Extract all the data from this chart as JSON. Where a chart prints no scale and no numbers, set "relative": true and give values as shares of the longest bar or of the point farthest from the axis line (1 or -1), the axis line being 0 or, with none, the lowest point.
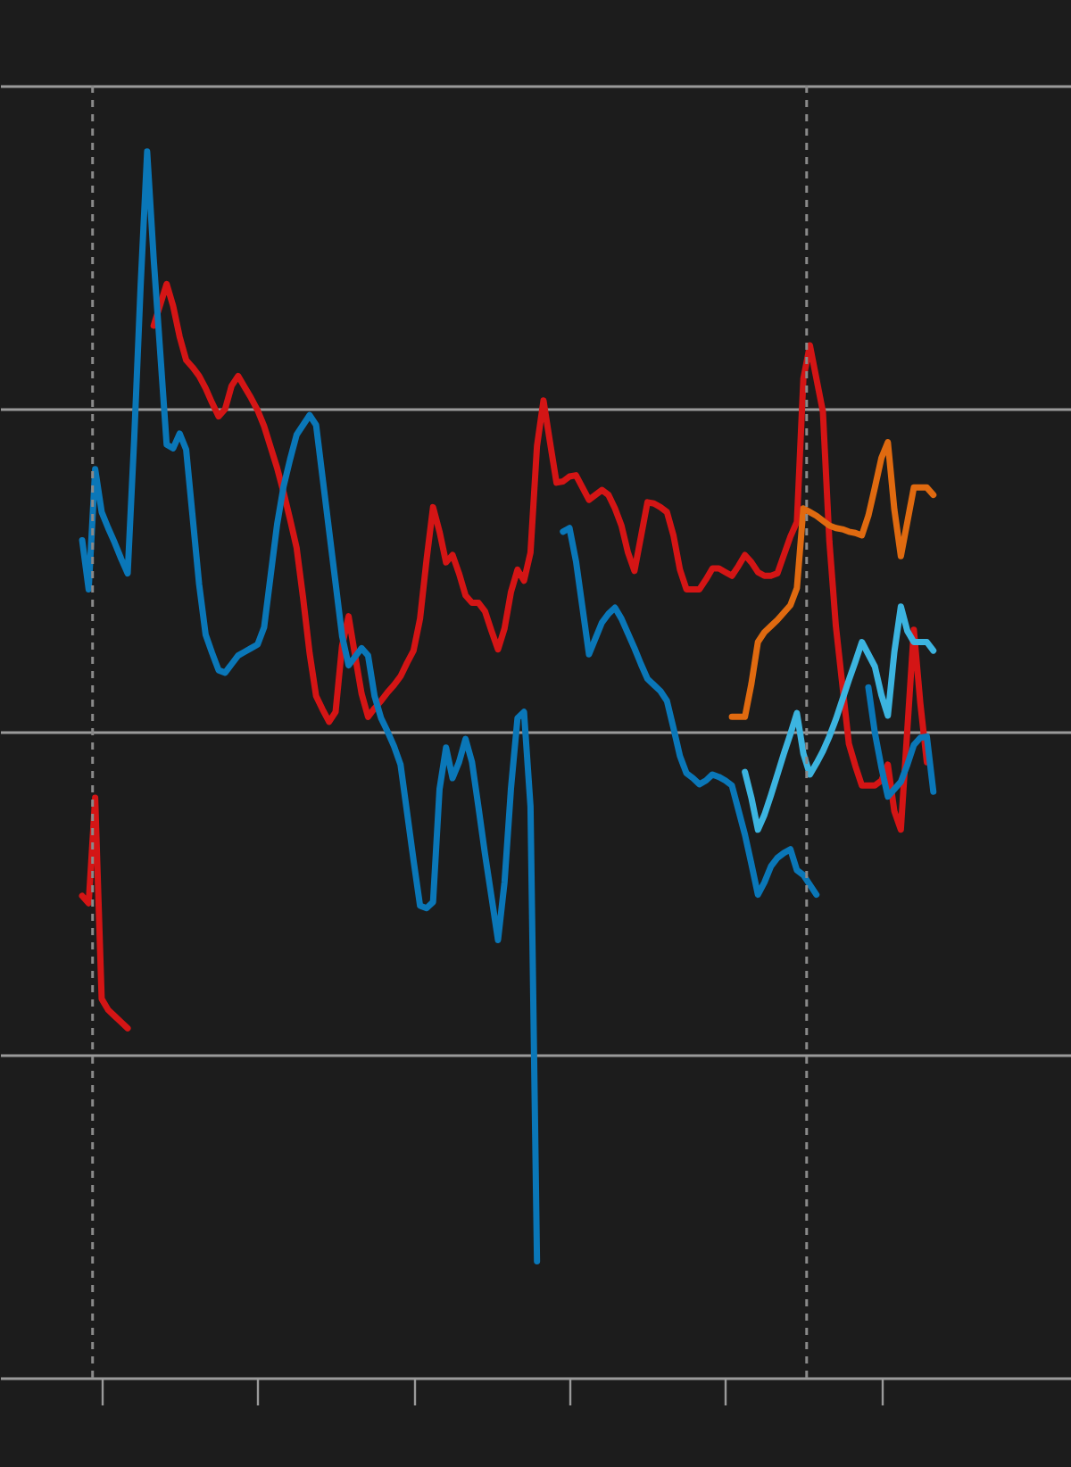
{
  "chart_data": {
    "type": "line",
    "relative": true,
    "categories": [
      null,
      null,
      null,
      null,
      null,
      null,
      null,
      null,
      null,
      null,
      null,
      null,
      null,
      null,
      null,
      null,
      null,
      null,
      null,
      null,
      null,
      null,
      null,
      null,
      null,
      null,
      null,
      null,
      null,
      null,
      null,
      null,
      null,
      null,
      null,
      null,
      null,
      null,
      null,
      null,
      null,
      null,
      null,
      null,
      null,
      null,
      null,
      null,
      null,
      null,
      null,
      null,
      null,
      null,
      null,
      null,
      null,
      null,
      null,
      null,
      null,
      null,
      null,
      null,
      null,
      null,
      null,
      null,
      null,
      null,
      null,
      null,
      null,
      null,
      null,
      null,
      null,
      null,
      null,
      null,
      null,
      null,
      null,
      null,
      null,
      null,
      null,
      null,
      null,
      null,
      null,
      null,
      null,
      null,
      null,
      null,
      null,
      null,
      null,
      null,
      null,
      null,
      null,
      null,
      null,
      null,
      null,
      null,
      null,
      null,
      null,
      null,
      null,
      null,
      null,
      null,
      null,
      null,
      null,
      null,
      null,
      null,
      null,
      null,
      null,
      null,
      null,
      null,
      null,
      null,
      null,
      null,
      null
    ],
    "series": [
      {
        "color": "#d41515",
        "values": [
          null,
          0.393,
          0.387,
          0.473,
          0.309,
          0.3,
          0.295,
          0.29,
          0.285,
          null,
          null,
          null,
          null,
          null,
          null,
          null,
          null,
          null,
          null,
          null,
          null,
          null,
          null,
          null,
          null,
          null,
          null,
          null,
          null,
          null,
          null,
          null,
          null,
          null,
          null,
          null,
          null,
          null,
          null,
          null,
          null,
          null,
          null,
          null,
          null,
          null,
          null,
          null,
          null,
          null,
          null,
          null,
          null,
          null,
          null,
          null,
          null,
          null,
          null,
          null,
          null,
          null,
          null,
          null,
          null,
          null,
          null,
          null,
          null,
          null,
          null,
          null,
          null,
          null,
          null,
          null,
          null,
          null,
          null,
          null,
          null,
          null,
          null,
          null,
          null,
          null,
          null,
          null,
          null,
          null,
          null,
          null,
          null,
          null,
          null,
          null,
          null,
          null,
          null,
          null,
          null,
          null,
          null,
          null,
          null,
          null,
          null,
          null,
          null,
          null,
          null,
          null,
          null,
          null,
          null,
          null,
          null,
          null,
          null,
          null,
          null,
          null,
          null,
          null,
          null,
          null,
          null,
          null,
          null,
          null,
          null,
          null,
          null
        ]
      },
      {
        "color": "#d41515",
        "values": [
          null,
          null,
          null,
          null,
          null,
          null,
          null,
          null,
          null,
          null,
          null,
          null,
          0.858,
          0.875,
          0.892,
          0.874,
          0.849,
          0.83,
          0.824,
          0.817,
          0.807,
          0.795,
          0.784,
          0.79,
          0.809,
          0.817,
          0.808,
          0.799,
          0.789,
          0.776,
          0.759,
          0.742,
          0.722,
          0.7,
          0.677,
          0.636,
          0.591,
          0.556,
          0.545,
          0.535,
          0.543,
          0.597,
          0.621,
          0.589,
          0.558,
          0.539,
          0.546,
          0.552,
          0.559,
          0.565,
          0.572,
          0.583,
          0.593,
          0.619,
          0.667,
          0.71,
          0.69,
          0.665,
          0.671,
          0.656,
          0.638,
          0.632,
          0.632,
          0.625,
          0.609,
          0.594,
          0.611,
          0.641,
          0.659,
          0.65,
          0.673,
          0.76,
          0.797,
          0.763,
          0.73,
          0.731,
          0.735,
          0.736,
          0.726,
          0.716,
          0.72,
          0.724,
          0.72,
          0.709,
          0.695,
          0.673,
          0.658,
          0.686,
          0.714,
          0.713,
          0.71,
          0.706,
          0.687,
          0.659,
          0.643,
          0.643,
          0.643,
          0.651,
          0.66,
          0.66,
          0.657,
          0.654,
          0.662,
          0.671,
          0.665,
          0.657,
          0.654,
          0.654,
          0.656,
          0.671,
          0.686,
          0.698,
          0.815,
          0.842,
          0.815,
          0.788,
          0.682,
          0.613,
          0.565,
          0.517,
          0.499,
          0.483,
          0.483,
          0.483,
          0.487,
          0.5,
          0.462,
          0.447,
          0.529,
          0.61,
          0.55,
          0.502,
          null
        ]
      },
      {
        "color": "#0a77b8",
        "values": [
          null,
          0.683,
          0.643,
          0.741,
          0.706,
          0.693,
          0.681,
          0.668,
          0.656,
          0.765,
          0.891,
          1.0,
          0.913,
          0.837,
          0.761,
          0.758,
          0.77,
          0.757,
          0.702,
          0.647,
          0.606,
          0.591,
          0.577,
          0.575,
          0.582,
          0.589,
          0.592,
          0.595,
          0.598,
          0.612,
          0.654,
          0.696,
          0.727,
          0.749,
          0.769,
          0.777,
          0.785,
          0.777,
          0.734,
          0.691,
          0.648,
          0.605,
          0.581,
          0.588,
          0.595,
          0.589,
          0.556,
          0.538,
          0.527,
          0.515,
          0.5,
          0.461,
          0.422,
          0.385,
          0.383,
          0.388,
          0.48,
          0.514,
          0.489,
          0.502,
          0.521,
          0.502,
          0.465,
          0.427,
          0.392,
          0.357,
          0.404,
          0.481,
          0.538,
          0.543,
          0.466,
          0.095,
          null,
          null,
          null,
          null,
          null,
          null,
          null,
          null,
          null,
          null,
          null,
          null,
          null,
          null,
          null,
          null,
          null,
          null,
          null,
          null,
          null,
          null,
          null,
          null,
          null,
          null,
          null,
          null,
          null,
          null,
          null,
          null,
          null,
          null,
          null,
          null,
          null,
          null,
          null,
          null,
          null,
          null,
          null,
          null,
          null,
          null,
          null,
          null,
          null,
          null,
          null,
          null,
          null,
          null,
          null,
          null,
          null,
          null,
          null,
          null,
          null
        ]
      },
      {
        "color": "#0a77b8",
        "values": [
          null,
          null,
          null,
          null,
          null,
          null,
          null,
          null,
          null,
          null,
          null,
          null,
          null,
          null,
          null,
          null,
          null,
          null,
          null,
          null,
          null,
          null,
          null,
          null,
          null,
          null,
          null,
          null,
          null,
          null,
          null,
          null,
          null,
          null,
          null,
          null,
          null,
          null,
          null,
          null,
          null,
          null,
          null,
          null,
          null,
          null,
          null,
          null,
          null,
          null,
          null,
          null,
          null,
          null,
          null,
          null,
          null,
          null,
          null,
          null,
          null,
          null,
          null,
          null,
          null,
          null,
          null,
          null,
          null,
          null,
          null,
          null,
          null,
          null,
          null,
          0.69,
          0.693,
          0.666,
          0.628,
          0.59,
          0.603,
          0.616,
          0.623,
          0.628,
          0.619,
          0.607,
          0.595,
          0.582,
          0.57,
          0.565,
          0.56,
          0.552,
          0.53,
          0.507,
          0.493,
          0.489,
          0.484,
          0.487,
          0.492,
          0.49,
          0.487,
          0.483,
          0.463,
          0.443,
          0.419,
          0.394,
          0.404,
          0.417,
          0.424,
          0.428,
          0.431,
          0.414,
          0.41,
          0.402,
          0.394,
          null,
          null,
          null,
          null,
          null,
          null,
          null,
          null,
          null,
          null,
          null,
          null,
          null,
          null,
          null,
          null,
          null,
          null
        ]
      },
      {
        "color": "#0a77b8",
        "values": [
          null,
          null,
          null,
          null,
          null,
          null,
          null,
          null,
          null,
          null,
          null,
          null,
          null,
          null,
          null,
          null,
          null,
          null,
          null,
          null,
          null,
          null,
          null,
          null,
          null,
          null,
          null,
          null,
          null,
          null,
          null,
          null,
          null,
          null,
          null,
          null,
          null,
          null,
          null,
          null,
          null,
          null,
          null,
          null,
          null,
          null,
          null,
          null,
          null,
          null,
          null,
          null,
          null,
          null,
          null,
          null,
          null,
          null,
          null,
          null,
          null,
          null,
          null,
          null,
          null,
          null,
          null,
          null,
          null,
          null,
          null,
          null,
          null,
          null,
          null,
          null,
          null,
          null,
          null,
          null,
          null,
          null,
          null,
          null,
          null,
          null,
          null,
          null,
          null,
          null,
          null,
          null,
          null,
          null,
          null,
          null,
          null,
          null,
          null,
          null,
          null,
          null,
          null,
          null,
          null,
          null,
          null,
          null,
          null,
          null,
          null,
          null,
          null,
          null,
          null,
          null,
          null,
          null,
          null,
          null,
          null,
          null,
          0.563,
          0.526,
          0.498,
          0.474,
          0.48,
          0.486,
          0.5,
          0.516,
          0.522,
          0.523,
          0.478
        ]
      },
      {
        "color": "#3cb4e0",
        "values": [
          null,
          null,
          null,
          null,
          null,
          null,
          null,
          null,
          null,
          null,
          null,
          null,
          null,
          null,
          null,
          null,
          null,
          null,
          null,
          null,
          null,
          null,
          null,
          null,
          null,
          null,
          null,
          null,
          null,
          null,
          null,
          null,
          null,
          null,
          null,
          null,
          null,
          null,
          null,
          null,
          null,
          null,
          null,
          null,
          null,
          null,
          null,
          null,
          null,
          null,
          null,
          null,
          null,
          null,
          null,
          null,
          null,
          null,
          null,
          null,
          null,
          null,
          null,
          null,
          null,
          null,
          null,
          null,
          null,
          null,
          null,
          null,
          null,
          null,
          null,
          null,
          null,
          null,
          null,
          null,
          null,
          null,
          null,
          null,
          null,
          null,
          null,
          null,
          null,
          null,
          null,
          null,
          null,
          null,
          null,
          null,
          null,
          null,
          null,
          null,
          null,
          null,
          null,
          0.494,
          0.473,
          0.447,
          0.459,
          0.475,
          0.492,
          0.509,
          0.525,
          0.542,
          0.509,
          0.492,
          0.501,
          0.511,
          0.523,
          0.537,
          0.553,
          0.569,
          0.584,
          0.6,
          0.59,
          0.58,
          0.557,
          0.54,
          0.592,
          0.629,
          0.609,
          0.6,
          0.6,
          0.6,
          0.593
        ]
      },
      {
        "color": "#e06a10",
        "values": [
          null,
          null,
          null,
          null,
          null,
          null,
          null,
          null,
          null,
          null,
          null,
          null,
          null,
          null,
          null,
          null,
          null,
          null,
          null,
          null,
          null,
          null,
          null,
          null,
          null,
          null,
          null,
          null,
          null,
          null,
          null,
          null,
          null,
          null,
          null,
          null,
          null,
          null,
          null,
          null,
          null,
          null,
          null,
          null,
          null,
          null,
          null,
          null,
          null,
          null,
          null,
          null,
          null,
          null,
          null,
          null,
          null,
          null,
          null,
          null,
          null,
          null,
          null,
          null,
          null,
          null,
          null,
          null,
          null,
          null,
          null,
          null,
          null,
          null,
          null,
          null,
          null,
          null,
          null,
          null,
          null,
          null,
          null,
          null,
          null,
          null,
          null,
          null,
          null,
          null,
          null,
          null,
          null,
          null,
          null,
          null,
          null,
          null,
          null,
          null,
          null,
          0.539,
          0.539,
          0.539,
          0.566,
          0.6,
          0.608,
          0.613,
          0.618,
          0.624,
          0.63,
          0.644,
          0.709,
          0.706,
          0.703,
          0.699,
          0.695,
          0.693,
          0.692,
          0.69,
          0.689,
          0.687,
          0.703,
          0.726,
          0.75,
          0.763,
          0.708,
          0.67,
          0.698,
          0.726,
          0.726,
          0.726,
          0.72
        ]
      }
    ],
    "grid": "y",
    "line_style": "solid",
    "marker": "none",
    "legend": false
  }
}
